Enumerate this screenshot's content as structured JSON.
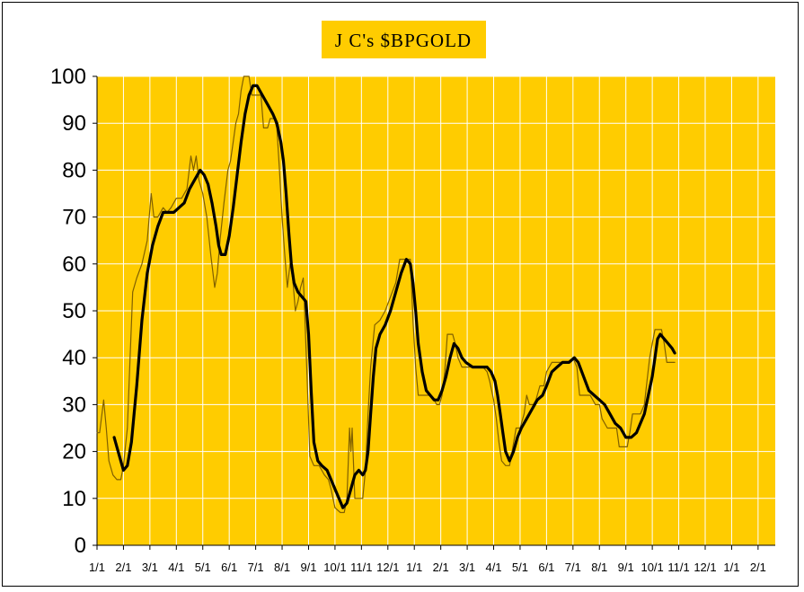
{
  "chart_data": {
    "type": "line",
    "title": "J C's $BPGOLD",
    "xlabel": "",
    "ylabel": "",
    "ylim": [
      0,
      100
    ],
    "yticks": [
      "0",
      "10",
      "20",
      "30",
      "40",
      "50",
      "60",
      "70",
      "80",
      "90",
      "100"
    ],
    "categories": [
      "1/1",
      "2/1",
      "3/1",
      "4/1",
      "5/1",
      "6/1",
      "7/1",
      "8/1",
      "9/1",
      "10/1",
      "11/1",
      "12/1",
      "1/1",
      "2/1",
      "3/1",
      "4/1",
      "5/1",
      "6/1",
      "7/1",
      "8/1",
      "9/1",
      "10/1",
      "11/1",
      "12/1",
      "1/1",
      "2/1"
    ],
    "grid": true,
    "colors": {
      "plot_bg": "#FFCC00",
      "grid": "#FFFFFF",
      "raw_line": "#806000",
      "smooth_line": "#000000",
      "title_bg": "#FFCC00"
    },
    "series": [
      {
        "values": [
          [
            0.0,
            24
          ],
          [
            0.1,
            24
          ],
          [
            0.25,
            31
          ],
          [
            0.35,
            25
          ],
          [
            0.45,
            18
          ],
          [
            0.6,
            15
          ],
          [
            0.75,
            14
          ],
          [
            0.9,
            14
          ],
          [
            1.0,
            17
          ],
          [
            1.15,
            25
          ],
          [
            1.25,
            40
          ],
          [
            1.35,
            54
          ],
          [
            1.5,
            57
          ],
          [
            1.7,
            60
          ],
          [
            1.9,
            65
          ],
          [
            2.05,
            75
          ],
          [
            2.15,
            70
          ],
          [
            2.3,
            70
          ],
          [
            2.5,
            72
          ],
          [
            2.65,
            71
          ],
          [
            2.8,
            72
          ],
          [
            3.0,
            74
          ],
          [
            3.2,
            74
          ],
          [
            3.4,
            76
          ],
          [
            3.55,
            83
          ],
          [
            3.65,
            80
          ],
          [
            3.75,
            83
          ],
          [
            3.85,
            78
          ],
          [
            4.0,
            75
          ],
          [
            4.15,
            70
          ],
          [
            4.3,
            62
          ],
          [
            4.45,
            55
          ],
          [
            4.55,
            58
          ],
          [
            4.65,
            65
          ],
          [
            4.8,
            73
          ],
          [
            4.95,
            80
          ],
          [
            5.05,
            82
          ],
          [
            5.15,
            86
          ],
          [
            5.25,
            90
          ],
          [
            5.35,
            92
          ],
          [
            5.45,
            97
          ],
          [
            5.55,
            100
          ],
          [
            5.75,
            100
          ],
          [
            5.85,
            96
          ],
          [
            6.0,
            96
          ],
          [
            6.2,
            96
          ],
          [
            6.3,
            89
          ],
          [
            6.45,
            89
          ],
          [
            6.55,
            91
          ],
          [
            6.7,
            91
          ],
          [
            6.8,
            89
          ],
          [
            6.9,
            80
          ],
          [
            7.0,
            70
          ],
          [
            7.1,
            62
          ],
          [
            7.2,
            55
          ],
          [
            7.3,
            60
          ],
          [
            7.4,
            57
          ],
          [
            7.5,
            50
          ],
          [
            7.6,
            52
          ],
          [
            7.7,
            55
          ],
          [
            7.8,
            57
          ],
          [
            7.85,
            50
          ],
          [
            7.95,
            35
          ],
          [
            8.05,
            19
          ],
          [
            8.2,
            17
          ],
          [
            8.3,
            17
          ],
          [
            8.4,
            17
          ],
          [
            8.5,
            16
          ],
          [
            8.6,
            15
          ],
          [
            8.75,
            14
          ],
          [
            8.85,
            12
          ],
          [
            9.0,
            8
          ],
          [
            9.2,
            7
          ],
          [
            9.35,
            7
          ],
          [
            9.45,
            10
          ],
          [
            9.55,
            25
          ],
          [
            9.6,
            20
          ],
          [
            9.65,
            25
          ],
          [
            9.75,
            10
          ],
          [
            9.9,
            10
          ],
          [
            10.05,
            10
          ],
          [
            10.15,
            16
          ],
          [
            10.25,
            28
          ],
          [
            10.35,
            38
          ],
          [
            10.5,
            47
          ],
          [
            10.7,
            48
          ],
          [
            10.9,
            50
          ],
          [
            11.1,
            53
          ],
          [
            11.3,
            56
          ],
          [
            11.45,
            61
          ],
          [
            11.65,
            61
          ],
          [
            11.85,
            61
          ],
          [
            11.95,
            48
          ],
          [
            12.05,
            38
          ],
          [
            12.15,
            32
          ],
          [
            12.4,
            32
          ],
          [
            12.6,
            32
          ],
          [
            12.75,
            31
          ],
          [
            12.85,
            30
          ],
          [
            12.95,
            30
          ],
          [
            13.05,
            32
          ],
          [
            13.15,
            37
          ],
          [
            13.25,
            45
          ],
          [
            13.45,
            45
          ],
          [
            13.55,
            43
          ],
          [
            13.65,
            40
          ],
          [
            13.8,
            38
          ],
          [
            14.0,
            38
          ],
          [
            14.2,
            38
          ],
          [
            14.4,
            38
          ],
          [
            14.6,
            38
          ],
          [
            14.75,
            37
          ],
          [
            14.85,
            35
          ],
          [
            15.0,
            31
          ],
          [
            15.1,
            27
          ],
          [
            15.2,
            22
          ],
          [
            15.3,
            18
          ],
          [
            15.45,
            17
          ],
          [
            15.6,
            17
          ],
          [
            15.7,
            20
          ],
          [
            15.85,
            25
          ],
          [
            16.0,
            25
          ],
          [
            16.15,
            28
          ],
          [
            16.25,
            32
          ],
          [
            16.35,
            30
          ],
          [
            16.5,
            30
          ],
          [
            16.6,
            31
          ],
          [
            16.75,
            34
          ],
          [
            16.9,
            34
          ],
          [
            17.0,
            37
          ],
          [
            17.2,
            39
          ],
          [
            17.5,
            39
          ],
          [
            17.8,
            39
          ],
          [
            18.0,
            40
          ],
          [
            18.15,
            38
          ],
          [
            18.25,
            32
          ],
          [
            18.45,
            32
          ],
          [
            18.65,
            32
          ],
          [
            18.85,
            30
          ],
          [
            19.0,
            30
          ],
          [
            19.1,
            27
          ],
          [
            19.3,
            25
          ],
          [
            19.5,
            25
          ],
          [
            19.65,
            25
          ],
          [
            19.75,
            21
          ],
          [
            19.9,
            21
          ],
          [
            20.05,
            21
          ],
          [
            20.15,
            24
          ],
          [
            20.25,
            28
          ],
          [
            20.4,
            28
          ],
          [
            20.55,
            28
          ],
          [
            20.7,
            30
          ],
          [
            20.8,
            35
          ],
          [
            20.9,
            40
          ],
          [
            21.0,
            43
          ],
          [
            21.1,
            46
          ],
          [
            21.25,
            46
          ],
          [
            21.35,
            46
          ],
          [
            21.45,
            43
          ],
          [
            21.55,
            39
          ],
          [
            21.7,
            39
          ],
          [
            21.85,
            39
          ]
        ]
      },
      {
        "values": [
          [
            0.65,
            23
          ],
          [
            0.8,
            20
          ],
          [
            1.0,
            16
          ],
          [
            1.15,
            17
          ],
          [
            1.3,
            22
          ],
          [
            1.5,
            34
          ],
          [
            1.7,
            48
          ],
          [
            1.9,
            58
          ],
          [
            2.1,
            64
          ],
          [
            2.3,
            68
          ],
          [
            2.5,
            71
          ],
          [
            2.7,
            71
          ],
          [
            2.9,
            71
          ],
          [
            3.1,
            72
          ],
          [
            3.3,
            73
          ],
          [
            3.5,
            76
          ],
          [
            3.7,
            78
          ],
          [
            3.9,
            80
          ],
          [
            4.05,
            79
          ],
          [
            4.2,
            77
          ],
          [
            4.35,
            73
          ],
          [
            4.5,
            68
          ],
          [
            4.6,
            64
          ],
          [
            4.7,
            62
          ],
          [
            4.85,
            62
          ],
          [
            5.0,
            66
          ],
          [
            5.15,
            72
          ],
          [
            5.3,
            79
          ],
          [
            5.45,
            86
          ],
          [
            5.6,
            92
          ],
          [
            5.75,
            96
          ],
          [
            5.9,
            98
          ],
          [
            6.05,
            98
          ],
          [
            6.25,
            96
          ],
          [
            6.45,
            94
          ],
          [
            6.65,
            92
          ],
          [
            6.8,
            90
          ],
          [
            6.95,
            86
          ],
          [
            7.05,
            82
          ],
          [
            7.15,
            75
          ],
          [
            7.25,
            67
          ],
          [
            7.35,
            60
          ],
          [
            7.45,
            56
          ],
          [
            7.6,
            54
          ],
          [
            7.75,
            53
          ],
          [
            7.9,
            52
          ],
          [
            8.0,
            45
          ],
          [
            8.1,
            33
          ],
          [
            8.2,
            22
          ],
          [
            8.35,
            18
          ],
          [
            8.5,
            17
          ],
          [
            8.7,
            16
          ],
          [
            8.85,
            14
          ],
          [
            9.0,
            12
          ],
          [
            9.15,
            10
          ],
          [
            9.3,
            8
          ],
          [
            9.45,
            9
          ],
          [
            9.6,
            12
          ],
          [
            9.75,
            15
          ],
          [
            9.9,
            16
          ],
          [
            10.05,
            15
          ],
          [
            10.15,
            16
          ],
          [
            10.25,
            20
          ],
          [
            10.35,
            28
          ],
          [
            10.45,
            36
          ],
          [
            10.55,
            42
          ],
          [
            10.7,
            45
          ],
          [
            10.9,
            47
          ],
          [
            11.1,
            50
          ],
          [
            11.3,
            54
          ],
          [
            11.5,
            58
          ],
          [
            11.7,
            61
          ],
          [
            11.85,
            60
          ],
          [
            11.95,
            56
          ],
          [
            12.05,
            50
          ],
          [
            12.15,
            43
          ],
          [
            12.3,
            37
          ],
          [
            12.45,
            33
          ],
          [
            12.6,
            32
          ],
          [
            12.75,
            31
          ],
          [
            12.9,
            31
          ],
          [
            13.05,
            33
          ],
          [
            13.2,
            36
          ],
          [
            13.35,
            40
          ],
          [
            13.5,
            43
          ],
          [
            13.65,
            42
          ],
          [
            13.8,
            40
          ],
          [
            13.95,
            39
          ],
          [
            14.2,
            38
          ],
          [
            14.5,
            38
          ],
          [
            14.75,
            38
          ],
          [
            14.9,
            37
          ],
          [
            15.05,
            35
          ],
          [
            15.15,
            32
          ],
          [
            15.25,
            28
          ],
          [
            15.35,
            24
          ],
          [
            15.45,
            20
          ],
          [
            15.6,
            18
          ],
          [
            15.75,
            20
          ],
          [
            15.9,
            23
          ],
          [
            16.05,
            25
          ],
          [
            16.25,
            27
          ],
          [
            16.45,
            29
          ],
          [
            16.65,
            31
          ],
          [
            16.85,
            32
          ],
          [
            17.0,
            34
          ],
          [
            17.2,
            37
          ],
          [
            17.4,
            38
          ],
          [
            17.6,
            39
          ],
          [
            17.85,
            39
          ],
          [
            18.05,
            40
          ],
          [
            18.2,
            39
          ],
          [
            18.4,
            36
          ],
          [
            18.6,
            33
          ],
          [
            18.8,
            32
          ],
          [
            19.0,
            31
          ],
          [
            19.2,
            30
          ],
          [
            19.4,
            28
          ],
          [
            19.6,
            26
          ],
          [
            19.8,
            25
          ],
          [
            20.0,
            23
          ],
          [
            20.2,
            23
          ],
          [
            20.4,
            24
          ],
          [
            20.55,
            26
          ],
          [
            20.7,
            28
          ],
          [
            20.85,
            32
          ],
          [
            21.0,
            36
          ],
          [
            21.1,
            40
          ],
          [
            21.2,
            44
          ],
          [
            21.3,
            45
          ],
          [
            21.45,
            44
          ],
          [
            21.6,
            43
          ],
          [
            21.75,
            42
          ],
          [
            21.85,
            41
          ]
        ]
      }
    ]
  }
}
